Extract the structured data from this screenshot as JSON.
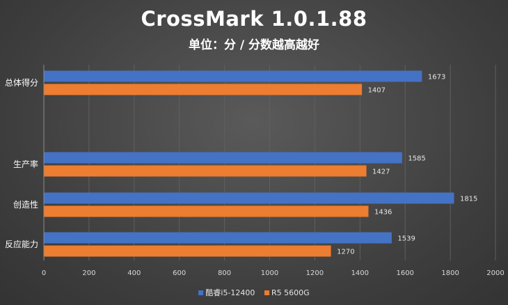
{
  "chart_data": {
    "type": "bar",
    "orientation": "horizontal",
    "title": "CrossMark 1.0.1.88",
    "subtitle": "单位：分 / 分数越高越好",
    "categories": [
      "总体得分",
      "生产率",
      "创造性",
      "反应能力"
    ],
    "series": [
      {
        "name": "酷睿i5-12400",
        "color": "#4472c4",
        "values": [
          1673,
          1585,
          1815,
          1539
        ]
      },
      {
        "name": "R5 5600G",
        "color": "#ed7d31",
        "values": [
          1407,
          1427,
          1436,
          1270
        ]
      }
    ],
    "xlim": [
      0,
      2000
    ],
    "xticks": [
      "0",
      "200",
      "400",
      "600",
      "800",
      "1000",
      "1200",
      "1400",
      "1600",
      "1800",
      "2000"
    ],
    "grid": true,
    "legend_position": "bottom"
  }
}
